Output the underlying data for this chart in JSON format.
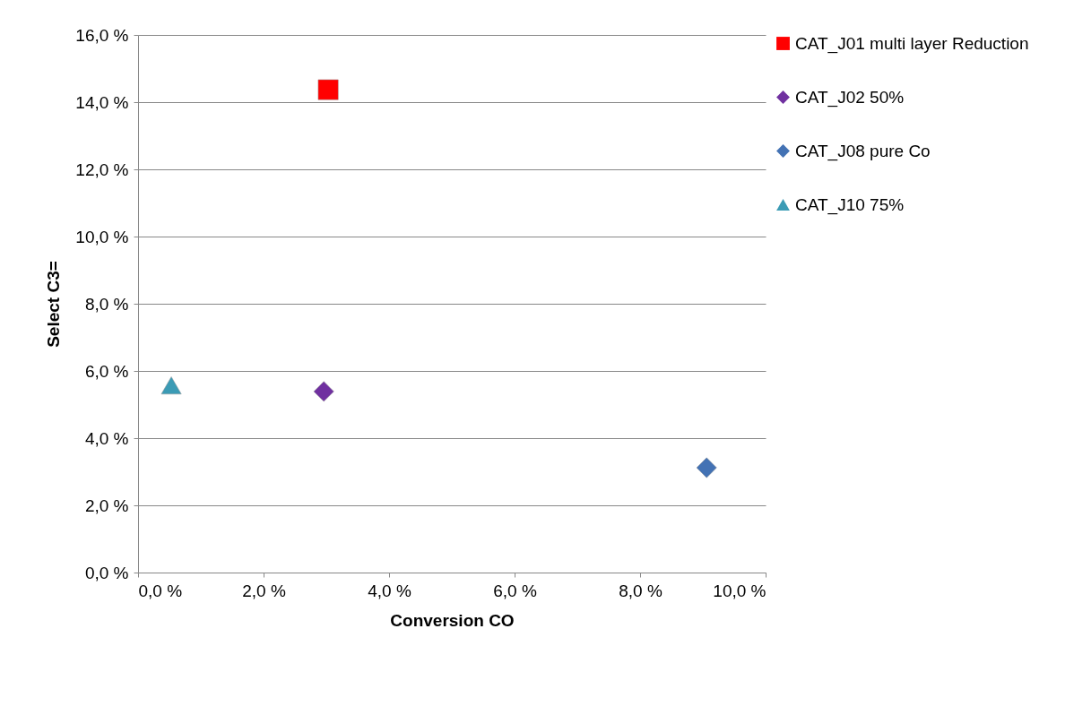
{
  "chart_data": {
    "type": "scatter",
    "xlabel": "Conversion CO",
    "ylabel": "Select C3=",
    "series": [
      {
        "name": "CAT_J01 multi layer Reduction",
        "color": "#ff0000",
        "marker": "square",
        "x": [
          3.03
        ],
        "values": [
          14.37
        ]
      },
      {
        "name": "CAT_J02 50%",
        "color": "#7030a0",
        "marker": "diamond",
        "x": [
          2.96
        ],
        "values": [
          5.39
        ]
      },
      {
        "name": "CAT_J08 pure Co",
        "color": "#4372b4",
        "marker": "diamond",
        "x": [
          9.06
        ],
        "values": [
          3.12
        ]
      },
      {
        "name": "CAT_J10 75%",
        "color": "#3b9bb5",
        "marker": "triangle",
        "x": [
          0.53
        ],
        "values": [
          5.57
        ]
      }
    ],
    "xlim": [
      0,
      10
    ],
    "ylim": [
      0,
      16
    ],
    "xticks": [
      {
        "value": 0,
        "label": "0,0 %"
      },
      {
        "value": 2,
        "label": "2,0 %"
      },
      {
        "value": 4,
        "label": "4,0 %"
      },
      {
        "value": 6,
        "label": "6,0 %"
      },
      {
        "value": 8,
        "label": "8,0 %"
      },
      {
        "value": 10,
        "label": "10,0 %"
      }
    ],
    "yticks": [
      {
        "value": 0,
        "label": "0,0 %"
      },
      {
        "value": 2,
        "label": "2,0 %"
      },
      {
        "value": 4,
        "label": "4,0 %"
      },
      {
        "value": 6,
        "label": "6,0 %"
      },
      {
        "value": 8,
        "label": "8,0 %"
      },
      {
        "value": 10,
        "label": "10,0 %"
      },
      {
        "value": 12,
        "label": "12,0 %"
      },
      {
        "value": 14,
        "label": "14,0 %"
      },
      {
        "value": 16,
        "label": "16,0 %"
      }
    ],
    "grid": "y",
    "legend": "right"
  }
}
